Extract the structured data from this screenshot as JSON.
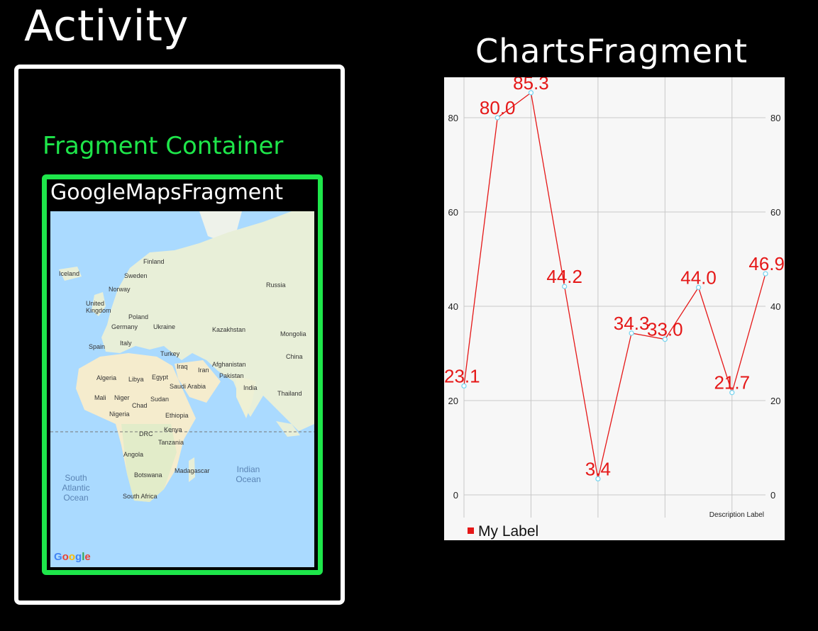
{
  "activity": {
    "title": "Activity",
    "container_label": "Fragment Container",
    "maps_fragment_title": "GoogleMapsFragment"
  },
  "map": {
    "labels": [
      "Finland",
      "Iceland",
      "Sweden",
      "Norway",
      "Russia",
      "United Kingdom",
      "Poland",
      "Germany",
      "Ukraine",
      "Kazakhstan",
      "Mongolia",
      "Spain",
      "Italy",
      "Turkey",
      "China",
      "Iraq",
      "Iran",
      "Afghanistan",
      "Algeria",
      "Libya",
      "Egypt",
      "Pakistan",
      "Saudi Arabia",
      "India",
      "Thailand",
      "Mali",
      "Niger",
      "Sudan",
      "Chad",
      "Nigeria",
      "Ethiopia",
      "DRC",
      "Kenya",
      "Tanzania",
      "Angola",
      "Madagascar",
      "Botswana",
      "South Africa"
    ],
    "oceans": [
      "South Atlantic Ocean",
      "Indian Ocean"
    ],
    "logo": "Google",
    "colors": {
      "water": "#aadaff",
      "land": "#e8efd8",
      "desert": "#f5eccd"
    }
  },
  "charts_fragment": {
    "title": "ChartsFragment",
    "description_label": "Description Label"
  },
  "chart_data": {
    "type": "line",
    "series": [
      {
        "name": "My Label",
        "values": [
          23.1,
          80.0,
          85.3,
          44.2,
          3.4,
          34.3,
          33.0,
          44.0,
          21.7,
          46.9
        ]
      }
    ],
    "value_labels": [
      "23.1",
      "80.0",
      "85.3",
      "44.2",
      "3.4",
      "34.3",
      "33.0",
      "44.0",
      "21.7",
      "46.9"
    ],
    "yticks": [
      "0",
      "20",
      "40",
      "60",
      "80"
    ],
    "ylim": [
      -5,
      88
    ],
    "grid": true,
    "legend_position": "bottom-left",
    "colors": {
      "line": "#e51717",
      "marker": "#7ad6f0",
      "labels": "#e51717",
      "grid": "#c8c8c8"
    }
  }
}
